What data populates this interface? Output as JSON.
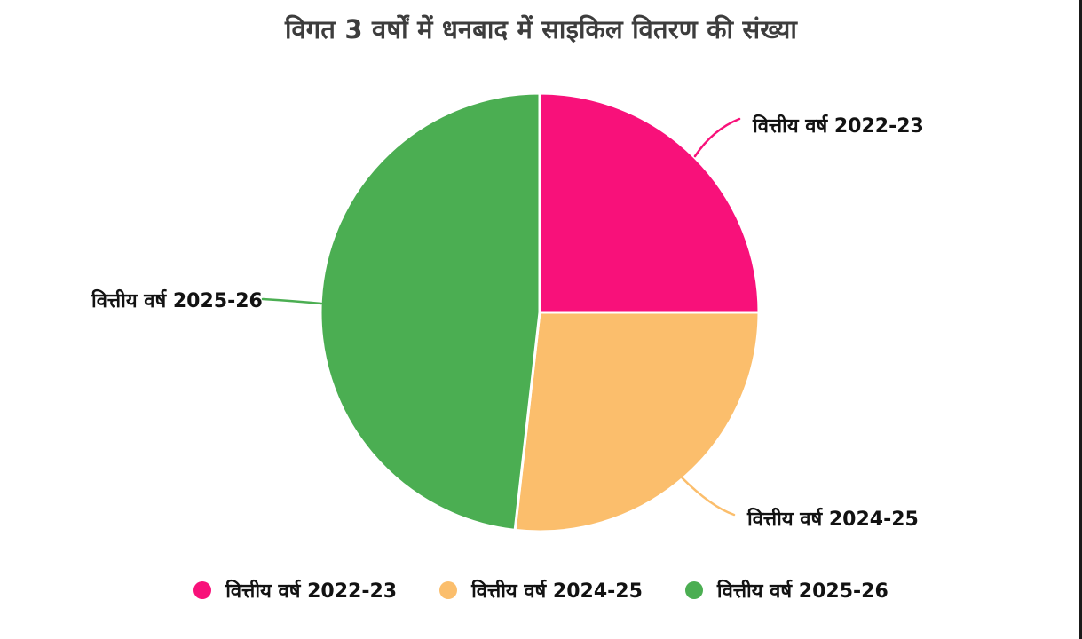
{
  "page": {
    "background": "#ffffff",
    "screen_edge_line_color": "#1a1a1a"
  },
  "chart_data": {
    "type": "pie",
    "title": "विगत 3 वर्षों में धनबाद में साइकिल वितरण की संख्या",
    "title_color": "#3d3d3d",
    "direction": "clockwise",
    "start_angle_deg": 0,
    "legend_position": "bottom",
    "label_color": "#121212",
    "slice_separator_color": "#ffffff",
    "slices": [
      {
        "label": "वित्तीय वर्ष 2022-23",
        "pct": 25.0,
        "color": "#F8117A"
      },
      {
        "label": "वित्तीय वर्ष 2024-25",
        "pct": 26.8,
        "color": "#FBBE6C"
      },
      {
        "label": "वित्तीय वर्ष 2025-26",
        "pct": 48.2,
        "color": "#4BAE52"
      }
    ]
  }
}
